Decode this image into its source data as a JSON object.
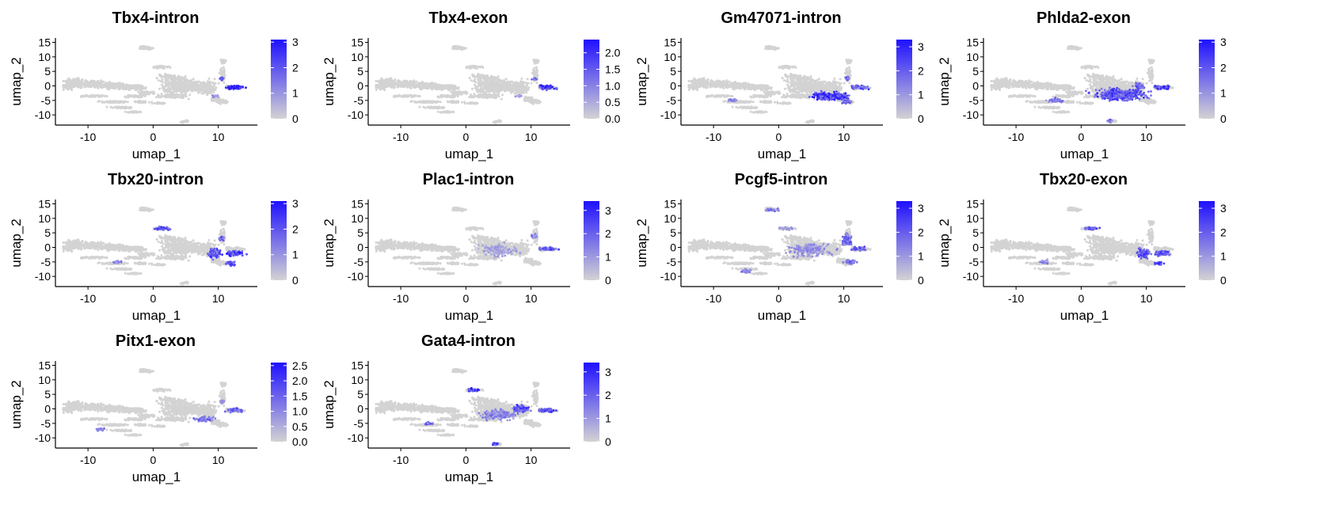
{
  "chart_data": [
    {
      "type": "scatter",
      "title": "Tbx4-intron",
      "xlabel": "umap_1",
      "ylabel": "umap_2",
      "xticks": [
        "-10",
        "0",
        "10"
      ],
      "yticks": [
        "15",
        "10",
        "5",
        "0",
        "-5",
        "-10"
      ],
      "xlim": [
        -15,
        16
      ],
      "ylim": [
        -13.5,
        16.5
      ],
      "colorbar": {
        "min": 0,
        "max": 3.1,
        "ticks": [
          "0",
          "1",
          "2",
          "3"
        ],
        "tick_values": [
          0,
          1,
          2,
          3
        ],
        "low_color": "#d3d3d3",
        "high_color": "#1f10ff"
      },
      "expression_regions": [
        [
          12.5,
          -0.5,
          1.6,
          0.8,
          1.0
        ],
        [
          10.5,
          2.5,
          0.5,
          0.6,
          0.7
        ],
        [
          9.5,
          -3.5,
          0.8,
          0.6,
          0.4
        ]
      ],
      "grid": false,
      "legend": "right"
    },
    {
      "type": "scatter",
      "title": "Tbx4-exon",
      "xlabel": "umap_1",
      "ylabel": "umap_2",
      "xticks": [
        "-10",
        "0",
        "10"
      ],
      "yticks": [
        "15",
        "10",
        "5",
        "0",
        "-5",
        "-10"
      ],
      "xlim": [
        -15,
        16
      ],
      "ylim": [
        -13.5,
        16.5
      ],
      "colorbar": {
        "min": 0,
        "max": 2.4,
        "ticks": [
          "0.0",
          "0.5",
          "1.0",
          "1.5",
          "2.0"
        ],
        "tick_values": [
          0,
          0.5,
          1,
          1.5,
          2
        ],
        "low_color": "#d3d3d3",
        "high_color": "#1f10ff"
      },
      "expression_regions": [
        [
          12.5,
          -0.5,
          1.6,
          0.8,
          0.9
        ],
        [
          10.5,
          2.5,
          0.5,
          0.6,
          0.6
        ],
        [
          8,
          -3.5,
          0.8,
          0.5,
          0.3
        ]
      ],
      "grid": false,
      "legend": "right"
    },
    {
      "type": "scatter",
      "title": "Gm47071-intron",
      "xlabel": "umap_1",
      "ylabel": "umap_2",
      "xticks": [
        "-10",
        "0",
        "10"
      ],
      "yticks": [
        "15",
        "10",
        "5",
        "0",
        "-5",
        "-10"
      ],
      "xlim": [
        -15,
        16
      ],
      "ylim": [
        -13.5,
        16.5
      ],
      "colorbar": {
        "min": 0,
        "max": 3.3,
        "ticks": [
          "0",
          "1",
          "2",
          "3"
        ],
        "tick_values": [
          0,
          1,
          2,
          3
        ],
        "low_color": "#d3d3d3",
        "high_color": "#1f10ff"
      },
      "expression_regions": [
        [
          8,
          -3.5,
          3.2,
          1.6,
          0.9
        ],
        [
          12.5,
          -0.5,
          1.6,
          0.8,
          0.8
        ],
        [
          10.5,
          -5.5,
          1.0,
          0.8,
          0.7
        ],
        [
          10.5,
          2.5,
          0.5,
          0.8,
          0.6
        ],
        [
          -7,
          -5,
          0.8,
          0.6,
          0.5
        ]
      ],
      "grid": false,
      "legend": "right"
    },
    {
      "type": "scatter",
      "title": "Phlda2-exon",
      "xlabel": "umap_1",
      "ylabel": "umap_2",
      "xticks": [
        "-10",
        "0",
        "10"
      ],
      "yticks": [
        "15",
        "10",
        "5",
        "0",
        "-5",
        "-10"
      ],
      "xlim": [
        -15,
        16
      ],
      "ylim": [
        -13.5,
        16.5
      ],
      "colorbar": {
        "min": 0,
        "max": 3.1,
        "ticks": [
          "0",
          "1",
          "2",
          "3"
        ],
        "tick_values": [
          0,
          1,
          2,
          3
        ],
        "low_color": "#d3d3d3",
        "high_color": "#1f10ff"
      },
      "expression_regions": [
        [
          6,
          -3,
          4.5,
          2.3,
          0.8
        ],
        [
          12.5,
          -0.5,
          1.6,
          0.8,
          0.9
        ],
        [
          9,
          0,
          1.0,
          1.5,
          0.7
        ],
        [
          -4,
          -5,
          1.5,
          1.0,
          0.5
        ],
        [
          4.5,
          -12,
          0.6,
          0.6,
          0.6
        ]
      ],
      "grid": false,
      "legend": "right"
    },
    {
      "type": "scatter",
      "title": "Tbx20-intron",
      "xlabel": "umap_1",
      "ylabel": "umap_2",
      "xticks": [
        "-10",
        "0",
        "10"
      ],
      "yticks": [
        "15",
        "10",
        "5",
        "0",
        "-5",
        "-10"
      ],
      "xlim": [
        -15,
        16
      ],
      "ylim": [
        -13.5,
        16.5
      ],
      "colorbar": {
        "min": 0,
        "max": 3.1,
        "ticks": [
          "0",
          "1",
          "2",
          "3"
        ],
        "tick_values": [
          0,
          1,
          2,
          3
        ],
        "low_color": "#d3d3d3",
        "high_color": "#1f10ff"
      },
      "expression_regions": [
        [
          1.5,
          6.5,
          1.3,
          0.6,
          0.9
        ],
        [
          9.5,
          -2,
          1.2,
          2.0,
          0.8
        ],
        [
          12.5,
          -2,
          1.6,
          1.0,
          0.9
        ],
        [
          12,
          -5.5,
          1.0,
          0.8,
          0.8
        ],
        [
          10.5,
          3,
          0.5,
          0.8,
          0.7
        ],
        [
          -5.5,
          -5,
          0.8,
          0.8,
          0.5
        ]
      ],
      "grid": false,
      "legend": "right"
    },
    {
      "type": "scatter",
      "title": "Plac1-intron",
      "xlabel": "umap_1",
      "ylabel": "umap_2",
      "xticks": [
        "-10",
        "0",
        "10"
      ],
      "yticks": [
        "15",
        "10",
        "5",
        "0",
        "-5",
        "-10"
      ],
      "xlim": [
        -15,
        16
      ],
      "ylim": [
        -13.5,
        16.5
      ],
      "colorbar": {
        "min": 0,
        "max": 3.4,
        "ticks": [
          "0",
          "1",
          "2",
          "3"
        ],
        "tick_values": [
          0,
          1,
          2,
          3
        ],
        "low_color": "#d3d3d3",
        "high_color": "#1f10ff"
      },
      "expression_regions": [
        [
          12.5,
          -0.5,
          1.6,
          0.8,
          0.8
        ],
        [
          10.5,
          4,
          0.5,
          1.0,
          0.5
        ],
        [
          5,
          -1,
          3.5,
          2.5,
          0.3
        ]
      ],
      "grid": false,
      "legend": "right"
    },
    {
      "type": "scatter",
      "title": "Pcgf5-intron",
      "xlabel": "umap_1",
      "ylabel": "umap_2",
      "xticks": [
        "-10",
        "0",
        "10"
      ],
      "yticks": [
        "15",
        "10",
        "5",
        "0",
        "-5",
        "-10"
      ],
      "xlim": [
        -15,
        16
      ],
      "ylim": [
        -13.5,
        16.5
      ],
      "colorbar": {
        "min": 0,
        "max": 3.3,
        "ticks": [
          "0",
          "1",
          "2",
          "3"
        ],
        "tick_values": [
          0,
          1,
          2,
          3
        ],
        "low_color": "#d3d3d3",
        "high_color": "#1f10ff"
      },
      "expression_regions": [
        [
          10.5,
          2.5,
          1.0,
          2.5,
          0.7
        ],
        [
          12.5,
          -0.5,
          1.6,
          0.8,
          0.7
        ],
        [
          11,
          -5,
          1.2,
          1.0,
          0.6
        ],
        [
          5,
          -1,
          3.8,
          2.5,
          0.4
        ],
        [
          -1,
          13,
          1.2,
          0.6,
          0.5
        ],
        [
          1,
          6.5,
          1.3,
          0.6,
          0.4
        ],
        [
          -5,
          -8,
          1.2,
          0.8,
          0.5
        ]
      ],
      "grid": false,
      "legend": "right"
    },
    {
      "type": "scatter",
      "title": "Tbx20-exon",
      "xlabel": "umap_1",
      "ylabel": "umap_2",
      "xticks": [
        "-10",
        "0",
        "10"
      ],
      "yticks": [
        "15",
        "10",
        "5",
        "0",
        "-5",
        "-10"
      ],
      "xlim": [
        -15,
        16
      ],
      "ylim": [
        -13.5,
        16.5
      ],
      "colorbar": {
        "min": 0,
        "max": 3.3,
        "ticks": [
          "0",
          "1",
          "2",
          "3"
        ],
        "tick_values": [
          0,
          1,
          2,
          3
        ],
        "low_color": "#d3d3d3",
        "high_color": "#1f10ff"
      },
      "expression_regions": [
        [
          1.5,
          6.5,
          1.3,
          0.6,
          0.9
        ],
        [
          9.5,
          -2,
          1.2,
          2.0,
          0.8
        ],
        [
          12.5,
          -2,
          1.6,
          1.0,
          0.8
        ],
        [
          12,
          -5.5,
          1.0,
          0.8,
          0.8
        ],
        [
          -5.5,
          -5,
          0.8,
          0.8,
          0.5
        ]
      ],
      "grid": false,
      "legend": "right"
    },
    {
      "type": "scatter",
      "title": "Pitx1-exon",
      "xlabel": "umap_1",
      "ylabel": "umap_2",
      "xticks": [
        "-10",
        "0",
        "10"
      ],
      "yticks": [
        "15",
        "10",
        "5",
        "0",
        "-5",
        "-10"
      ],
      "xlim": [
        -15,
        16
      ],
      "ylim": [
        -13.5,
        16.5
      ],
      "colorbar": {
        "min": 0,
        "max": 2.6,
        "ticks": [
          "0.0",
          "0.5",
          "1.0",
          "1.5",
          "2.0",
          "2.5"
        ],
        "tick_values": [
          0,
          0.5,
          1,
          1.5,
          2,
          2.5
        ],
        "low_color": "#d3d3d3",
        "high_color": "#1f10ff"
      },
      "expression_regions": [
        [
          12.5,
          -0.5,
          1.6,
          0.8,
          0.7
        ],
        [
          8,
          -3.5,
          2.0,
          1.0,
          0.6
        ],
        [
          -8,
          -7,
          0.8,
          0.6,
          0.5
        ],
        [
          10.5,
          2.5,
          0.5,
          0.8,
          0.4
        ]
      ],
      "grid": false,
      "legend": "right"
    },
    {
      "type": "scatter",
      "title": "Gata4-intron",
      "xlabel": "umap_1",
      "ylabel": "umap_2",
      "xticks": [
        "-10",
        "0",
        "10"
      ],
      "yticks": [
        "15",
        "10",
        "5",
        "0",
        "-5",
        "-10"
      ],
      "xlim": [
        -15,
        16
      ],
      "ylim": [
        -13.5,
        16.5
      ],
      "colorbar": {
        "min": 0,
        "max": 3.4,
        "ticks": [
          "0",
          "1",
          "2",
          "3"
        ],
        "tick_values": [
          0,
          1,
          2,
          3
        ],
        "low_color": "#d3d3d3",
        "high_color": "#1f10ff"
      },
      "expression_regions": [
        [
          1,
          6.5,
          1.3,
          0.6,
          0.9
        ],
        [
          8.5,
          0,
          1.5,
          1.5,
          0.8
        ],
        [
          12.5,
          -0.5,
          1.6,
          0.8,
          0.8
        ],
        [
          4.5,
          -12,
          0.6,
          0.6,
          0.8
        ],
        [
          5,
          -2,
          3.5,
          2.0,
          0.5
        ],
        [
          -5.5,
          -5,
          0.8,
          0.6,
          0.6
        ]
      ],
      "grid": false,
      "legend": "right"
    }
  ]
}
